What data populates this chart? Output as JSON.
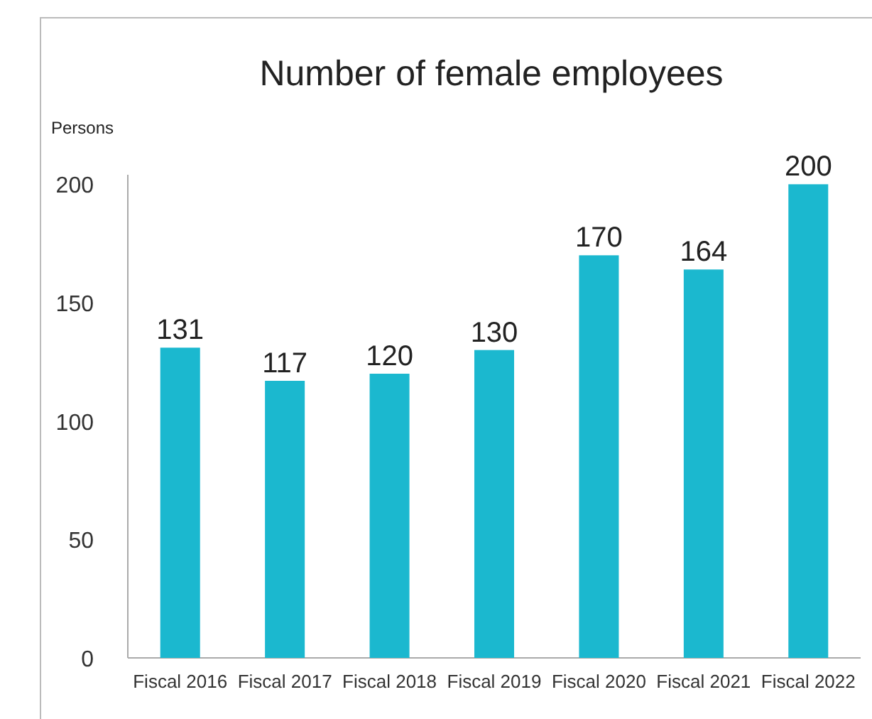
{
  "chart_data": {
    "type": "bar",
    "title": "Number of female employees",
    "ylabel": "Persons",
    "categories": [
      "Fiscal 2016",
      "Fiscal 2017",
      "Fiscal 2018",
      "Fiscal 2019",
      "Fiscal 2020",
      "Fiscal 2021",
      "Fiscal 2022"
    ],
    "values": [
      131,
      117,
      120,
      130,
      170,
      164,
      200
    ],
    "color": "#1bb8cf",
    "ylim": [
      0,
      204
    ],
    "yticks": [
      0,
      50,
      100,
      150,
      200
    ],
    "grid": false,
    "data_labels": true
  }
}
